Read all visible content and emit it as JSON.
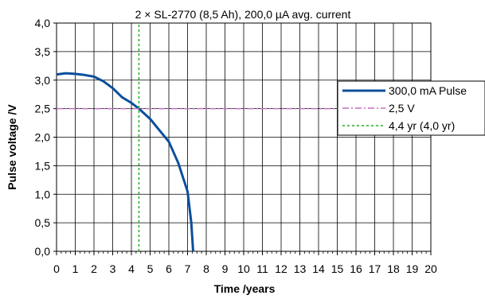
{
  "chart_data": {
    "type": "line",
    "title": "2 × SL-2770 (8,5 Ah), 200,0 µA avg. current",
    "xlabel": "Time /years",
    "ylabel": "Pulse voltage /V",
    "xlim": [
      0,
      20
    ],
    "ylim": [
      0,
      4
    ],
    "x_ticks": [
      "0",
      "1",
      "2",
      "3",
      "4",
      "5",
      "6",
      "7",
      "8",
      "9",
      "10",
      "11",
      "12",
      "13",
      "14",
      "15",
      "16",
      "17",
      "18",
      "19",
      "20"
    ],
    "y_ticks": [
      "0,0",
      "0,5",
      "1,0",
      "1,5",
      "2,0",
      "2,5",
      "3,0",
      "3,5",
      "4,0"
    ],
    "grid": true,
    "legend_position": "right",
    "series": [
      {
        "name": "300,0 mA Pulse",
        "color": "#0b4f9c",
        "style": "solid",
        "x": [
          0,
          0.5,
          1,
          1.5,
          2,
          2.5,
          3,
          3.5,
          4,
          4.4,
          5,
          5.5,
          6,
          6.5,
          7,
          7.2,
          7.3
        ],
        "y": [
          3.1,
          3.12,
          3.11,
          3.09,
          3.06,
          2.98,
          2.86,
          2.7,
          2.6,
          2.5,
          2.32,
          2.12,
          1.92,
          1.55,
          1.05,
          0.5,
          0
        ]
      },
      {
        "name": "2,5 V",
        "color": "#c070c0",
        "style": "dashdot",
        "x": [
          0,
          20
        ],
        "y": [
          2.5,
          2.5
        ]
      },
      {
        "name": "4,4 yr (4,0 yr)",
        "color": "#20b020",
        "style": "dotted",
        "x": [
          4.4,
          4.4
        ],
        "y": [
          0,
          4
        ]
      }
    ]
  }
}
